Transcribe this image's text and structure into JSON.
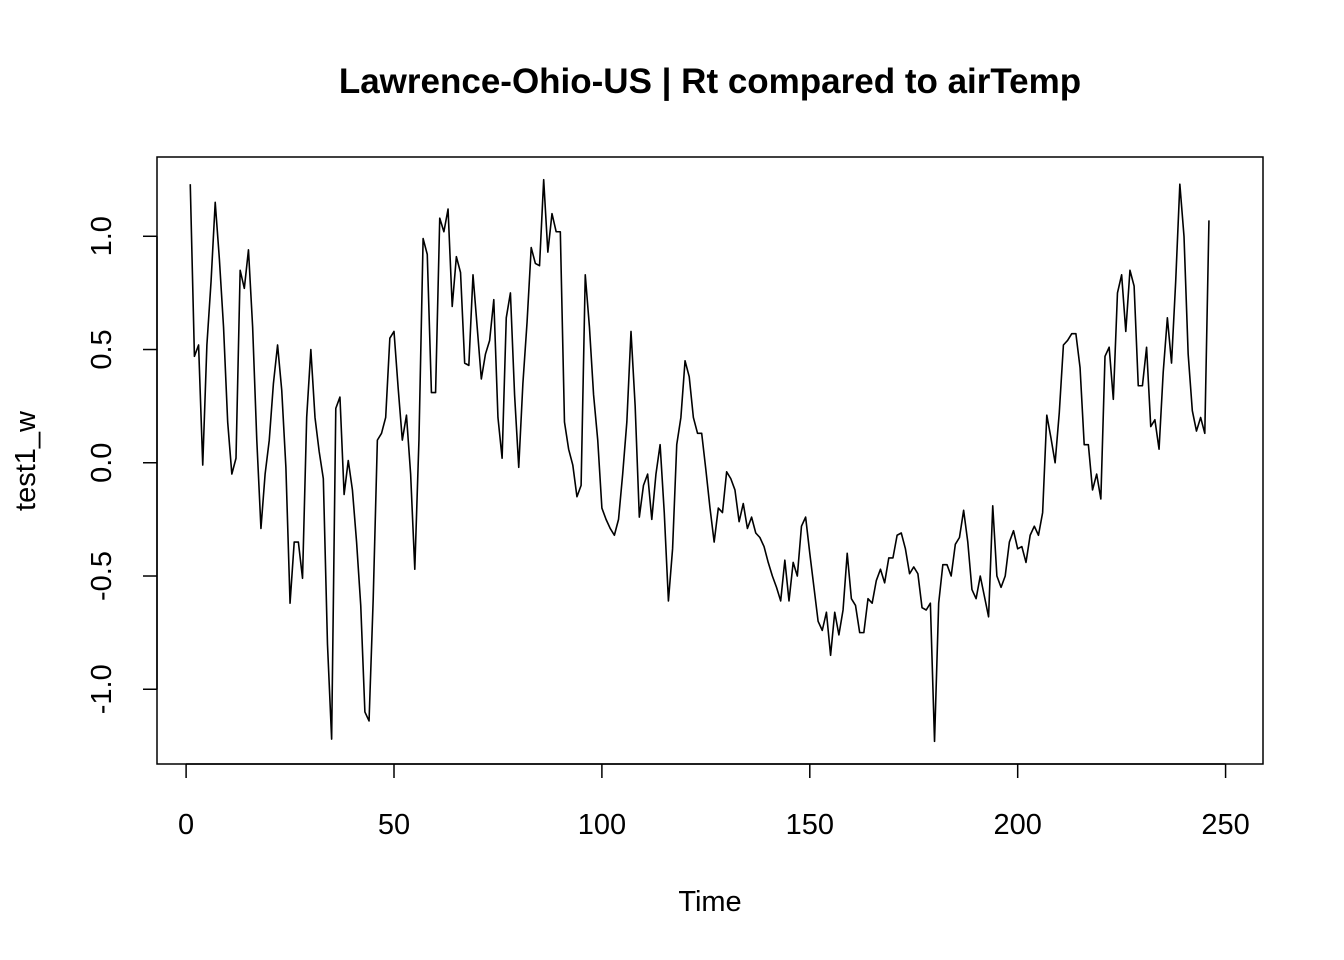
{
  "chart_data": {
    "type": "line",
    "title": "Lawrence-Ohio-US | Rt compared to airTemp",
    "xlabel": "Time",
    "ylabel": "test1_w",
    "xlim": [
      -7,
      259
    ],
    "ylim": [
      -1.33,
      1.35
    ],
    "x_ticks": [
      0,
      50,
      100,
      150,
      200,
      250
    ],
    "x_tick_labels": [
      "0",
      "50",
      "100",
      "150",
      "200",
      "250"
    ],
    "y_ticks": [
      -1.0,
      -0.5,
      0.0,
      0.5,
      1.0
    ],
    "y_tick_labels": [
      "-1.0",
      "-0.5",
      "0.0",
      "0.5",
      "1.0"
    ],
    "grid": false,
    "line_color": "#000000",
    "series": [
      {
        "x_start": 1,
        "values": [
          1.23,
          0.47,
          0.52,
          -0.01,
          0.52,
          0.8,
          1.15,
          0.9,
          0.6,
          0.18,
          -0.05,
          0.02,
          0.85,
          0.77,
          0.94,
          0.6,
          0.1,
          -0.29,
          -0.05,
          0.1,
          0.35,
          0.52,
          0.32,
          -0.02,
          -0.62,
          -0.35,
          -0.35,
          -0.51,
          0.2,
          0.5,
          0.2,
          0.05,
          -0.07,
          -0.8,
          -1.22,
          0.24,
          0.29,
          -0.14,
          0.01,
          -0.12,
          -0.35,
          -0.63,
          -1.1,
          -1.14,
          -0.6,
          0.1,
          0.13,
          0.2,
          0.55,
          0.58,
          0.33,
          0.1,
          0.21,
          -0.05,
          -0.47,
          0.1,
          0.99,
          0.92,
          0.31,
          0.31,
          1.08,
          1.02,
          1.12,
          0.69,
          0.91,
          0.84,
          0.44,
          0.43,
          0.83,
          0.6,
          0.37,
          0.48,
          0.54,
          0.72,
          0.2,
          0.02,
          0.64,
          0.75,
          0.3,
          -0.02,
          0.35,
          0.62,
          0.95,
          0.88,
          0.87,
          1.25,
          0.93,
          1.1,
          1.02,
          1.02,
          0.18,
          0.06,
          -0.01,
          -0.15,
          -0.1,
          0.83,
          0.6,
          0.3,
          0.1,
          -0.2,
          -0.25,
          -0.29,
          -0.32,
          -0.25,
          -0.05,
          0.18,
          0.58,
          0.25,
          -0.24,
          -0.1,
          -0.05,
          -0.25,
          -0.05,
          0.08,
          -0.22,
          -0.61,
          -0.38,
          0.08,
          0.2,
          0.45,
          0.38,
          0.2,
          0.13,
          0.13,
          -0.03,
          -0.2,
          -0.35,
          -0.2,
          -0.22,
          -0.04,
          -0.07,
          -0.12,
          -0.26,
          -0.18,
          -0.29,
          -0.24,
          -0.31,
          -0.33,
          -0.37,
          -0.44,
          -0.5,
          -0.55,
          -0.61,
          -0.43,
          -0.61,
          -0.44,
          -0.5,
          -0.28,
          -0.24,
          -0.4,
          -0.55,
          -0.7,
          -0.74,
          -0.66,
          -0.85,
          -0.66,
          -0.76,
          -0.65,
          -0.4,
          -0.6,
          -0.63,
          -0.75,
          -0.75,
          -0.6,
          -0.62,
          -0.52,
          -0.47,
          -0.53,
          -0.42,
          -0.42,
          -0.32,
          -0.31,
          -0.38,
          -0.49,
          -0.46,
          -0.49,
          -0.64,
          -0.65,
          -0.62,
          -1.23,
          -0.62,
          -0.45,
          -0.45,
          -0.5,
          -0.36,
          -0.33,
          -0.21,
          -0.35,
          -0.56,
          -0.6,
          -0.5,
          -0.59,
          -0.68,
          -0.19,
          -0.5,
          -0.55,
          -0.5,
          -0.35,
          -0.3,
          -0.38,
          -0.37,
          -0.44,
          -0.32,
          -0.28,
          -0.32,
          -0.22,
          0.21,
          0.11,
          0.0,
          0.22,
          0.52,
          0.54,
          0.57,
          0.57,
          0.42,
          0.08,
          0.08,
          -0.12,
          -0.05,
          -0.16,
          0.47,
          0.51,
          0.28,
          0.75,
          0.83,
          0.58,
          0.85,
          0.78,
          0.34,
          0.34,
          0.51,
          0.16,
          0.19,
          0.06,
          0.4,
          0.64,
          0.44,
          0.8,
          1.23,
          1.0,
          0.48,
          0.23,
          0.14,
          0.2,
          0.13,
          1.07
        ]
      }
    ]
  }
}
